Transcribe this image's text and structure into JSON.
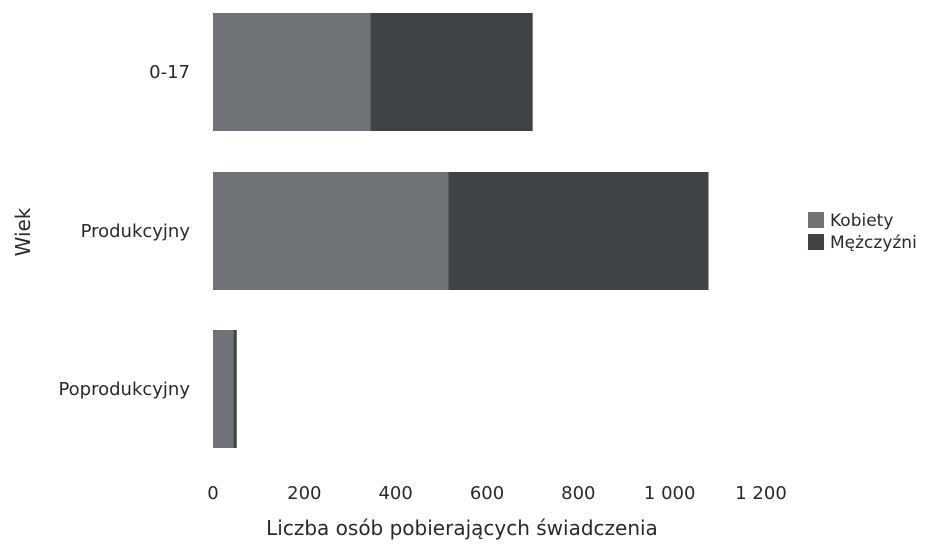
{
  "chart_data": {
    "type": "bar",
    "orientation": "horizontal",
    "stacked": true,
    "categories": [
      "0-17",
      "Produkcyjny",
      "Poprodukcyjny"
    ],
    "series": [
      {
        "name": "Kobiety",
        "values": [
          345,
          515,
          45
        ],
        "color": "#6f7377"
      },
      {
        "name": "Mężczyźni",
        "values": [
          355,
          570,
          7
        ],
        "color": "#3f4345"
      }
    ],
    "x_ticks": [
      "0",
      "200",
      "400",
      "600",
      "800",
      "1 000",
      "1 200"
    ],
    "x_tick_values": [
      0,
      200,
      400,
      600,
      800,
      1000,
      1200
    ],
    "xlim": [
      0,
      1200
    ],
    "xlabel": "Liczba osób pobierających świadczenia",
    "ylabel": "Wiek",
    "legend_position": "right",
    "grid": false
  }
}
